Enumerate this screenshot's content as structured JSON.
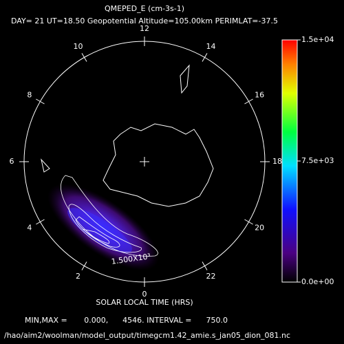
{
  "header": {
    "title": "QMEPED_E (cm-3s-1)",
    "subtitle": "DAY= 21 UT=18.50 Geopotential Altitude=105.00km PERIMLAT=-37.5"
  },
  "polar_plot": {
    "hour_labels": [
      12,
      14,
      16,
      18,
      20,
      22,
      0,
      2,
      4,
      6,
      8,
      10
    ],
    "contour_label": "1.500X10³",
    "axis_label": "SOLAR LOCAL TIME (HRS)"
  },
  "colorbar": {
    "lim": [
      0,
      15000
    ],
    "ticks": [
      {
        "value": 15000,
        "label": "1.5e+04"
      },
      {
        "value": 7500,
        "label": "7.5e+03"
      },
      {
        "value": 0,
        "label": "0.0e+00"
      }
    ]
  },
  "footer": {
    "stats": "MIN,MAX =       0.000,      4546. INTERVAL =      750.0",
    "path": "/hao/aim2/woolman/model_output/timegcm1.42_amie.s_jan05_dion_081.nc"
  }
}
